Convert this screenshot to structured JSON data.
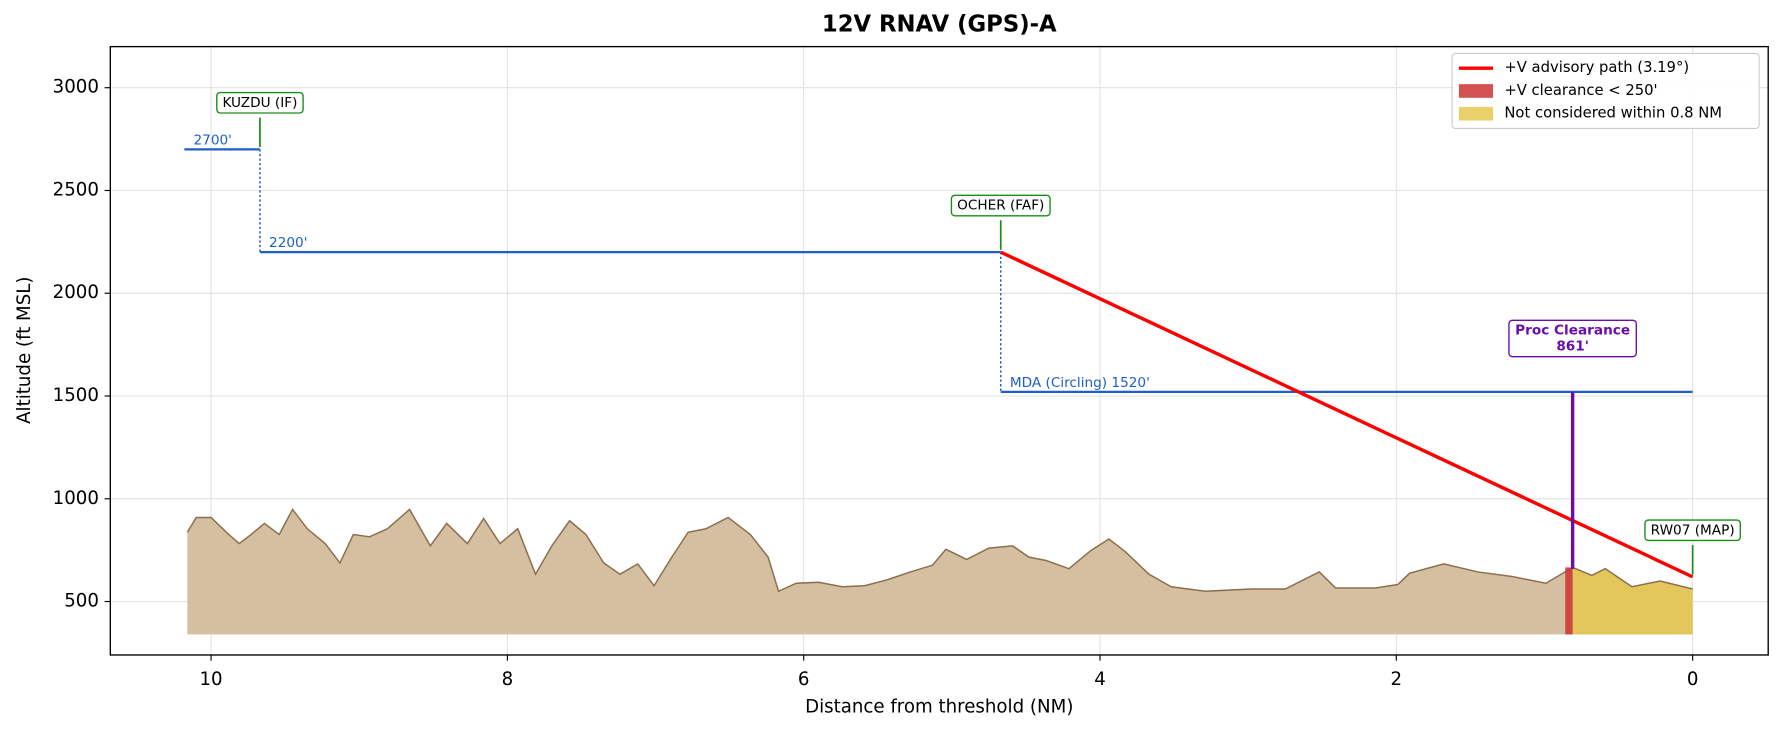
{
  "chart_data": {
    "type": "profile",
    "title": "12V  RNAV (GPS)-A",
    "xlabel": "Distance from threshold (NM)",
    "ylabel": "Altitude (ft MSL)",
    "xlim": [
      10.68,
      -0.51
    ],
    "ylim": [
      240,
      3200
    ],
    "xticks": [
      10,
      8,
      6,
      4,
      2,
      0
    ],
    "yticks": [
      500,
      1000,
      1500,
      2000,
      2500,
      3000
    ],
    "grid": true,
    "legend": "upper right",
    "terrain": {
      "color": "#d4bfa0",
      "line_color": "#8b6e4e",
      "floor": 340,
      "x": [
        10.16,
        10.1,
        10.0,
        9.88,
        9.81,
        9.73,
        9.64,
        9.54,
        9.45,
        9.35,
        9.23,
        9.13,
        9.04,
        8.93,
        8.81,
        8.66,
        8.52,
        8.41,
        8.27,
        8.16,
        8.05,
        7.93,
        7.81,
        7.7,
        7.58,
        7.47,
        7.35,
        7.24,
        7.12,
        7.01,
        6.89,
        6.78,
        6.66,
        6.51,
        6.36,
        6.24,
        6.17,
        6.05,
        5.9,
        5.74,
        5.59,
        5.44,
        5.28,
        5.13,
        5.04,
        4.9,
        4.75,
        4.59,
        4.48,
        4.36,
        4.21,
        4.06,
        3.94,
        3.83,
        3.67,
        3.52,
        3.29,
        2.98,
        2.75,
        2.52,
        2.41,
        2.14,
        1.99,
        1.91,
        1.68,
        1.45,
        1.22,
        0.99,
        0.81,
        0.68,
        0.59,
        0.41,
        0.22,
        0.0
      ],
      "values": [
        837,
        909,
        909,
        826,
        782,
        826,
        880,
        826,
        948,
        854,
        782,
        688,
        826,
        815,
        854,
        948,
        771,
        880,
        782,
        904,
        782,
        854,
        633,
        771,
        893,
        826,
        688,
        633,
        683,
        577,
        716,
        837,
        854,
        909,
        826,
        716,
        550,
        589,
        594,
        572,
        577,
        605,
        644,
        677,
        754,
        705,
        760,
        771,
        716,
        699,
        660,
        749,
        804,
        743,
        633,
        572,
        550,
        561,
        561,
        644,
        566,
        566,
        583,
        638,
        683,
        644,
        622,
        589,
        666,
        627,
        660,
        572,
        600,
        561
      ]
    },
    "segments": [
      {
        "label": "2700'",
        "x": [
          10.18,
          9.67
        ],
        "value": 2700
      },
      {
        "label": "2200'",
        "x": [
          9.67,
          4.67
        ],
        "value": 2200
      },
      {
        "label": "MDA (Circling) 1520'",
        "x": [
          4.67,
          0
        ],
        "value": 1520
      }
    ],
    "segment_color": "#1f5fc8",
    "fixes": [
      {
        "name": "KUZDU (IF)",
        "x": 9.67,
        "value": 2700
      },
      {
        "name": "OCHER (FAF)",
        "x": 4.67,
        "value": 2200
      },
      {
        "name": "RW07 (MAP)",
        "x": 0,
        "value": 620
      }
    ],
    "fix_color": "#1a8c1a",
    "advisory": {
      "name": "+V advisory path (3.19°)",
      "color": "#ff0000",
      "x": [
        4.67,
        0
      ],
      "values": [
        2200,
        620
      ]
    },
    "clearance_band": {
      "name": "+V clearance < 250'",
      "color": "#cc3333",
      "x": [
        0.86,
        0.81
      ]
    },
    "not_considered": {
      "name": "Not considered within 0.8 NM",
      "color": "#e6c84f",
      "x": [
        0.81,
        0
      ]
    },
    "proc_clearance": {
      "title": "Proc Clearance",
      "x": 0.81,
      "bottom": 659,
      "top": 1520,
      "values": [
        861
      ],
      "value_labels": [
        "861'"
      ],
      "color": "#6a0dad"
    }
  }
}
